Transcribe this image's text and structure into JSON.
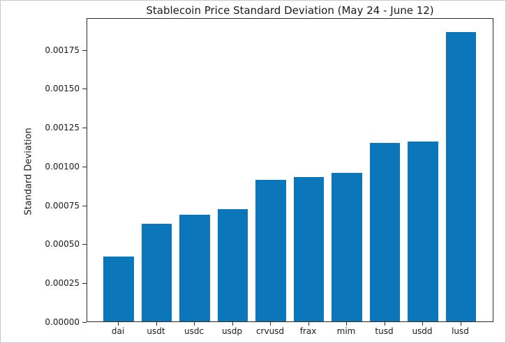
{
  "chart_data": {
    "type": "bar",
    "title": "Stablecoin Price Standard Deviation (May 24 - June 12)",
    "ylabel": "Standard Deviation",
    "xlabel": "",
    "categories": [
      "dai",
      "usdt",
      "usdc",
      "usdp",
      "crvusd",
      "frax",
      "mim",
      "tusd",
      "usdd",
      "lusd"
    ],
    "values": [
      0.000415,
      0.000628,
      0.000686,
      0.000722,
      0.000911,
      0.000927,
      0.000956,
      0.001148,
      0.001158,
      0.001862
    ],
    "ylim": [
      0,
      0.001955
    ],
    "yticks": [
      0,
      0.00025,
      0.0005,
      0.00075,
      0.001,
      0.00125,
      0.0015,
      0.00175
    ],
    "ytick_labels": [
      "0.00000",
      "0.00025",
      "0.00050",
      "0.00075",
      "0.00100",
      "0.00125",
      "0.00150",
      "0.00175"
    ],
    "bar_color": "#0b76b9",
    "grid": false,
    "legend": "none",
    "background": "#ffffff"
  }
}
